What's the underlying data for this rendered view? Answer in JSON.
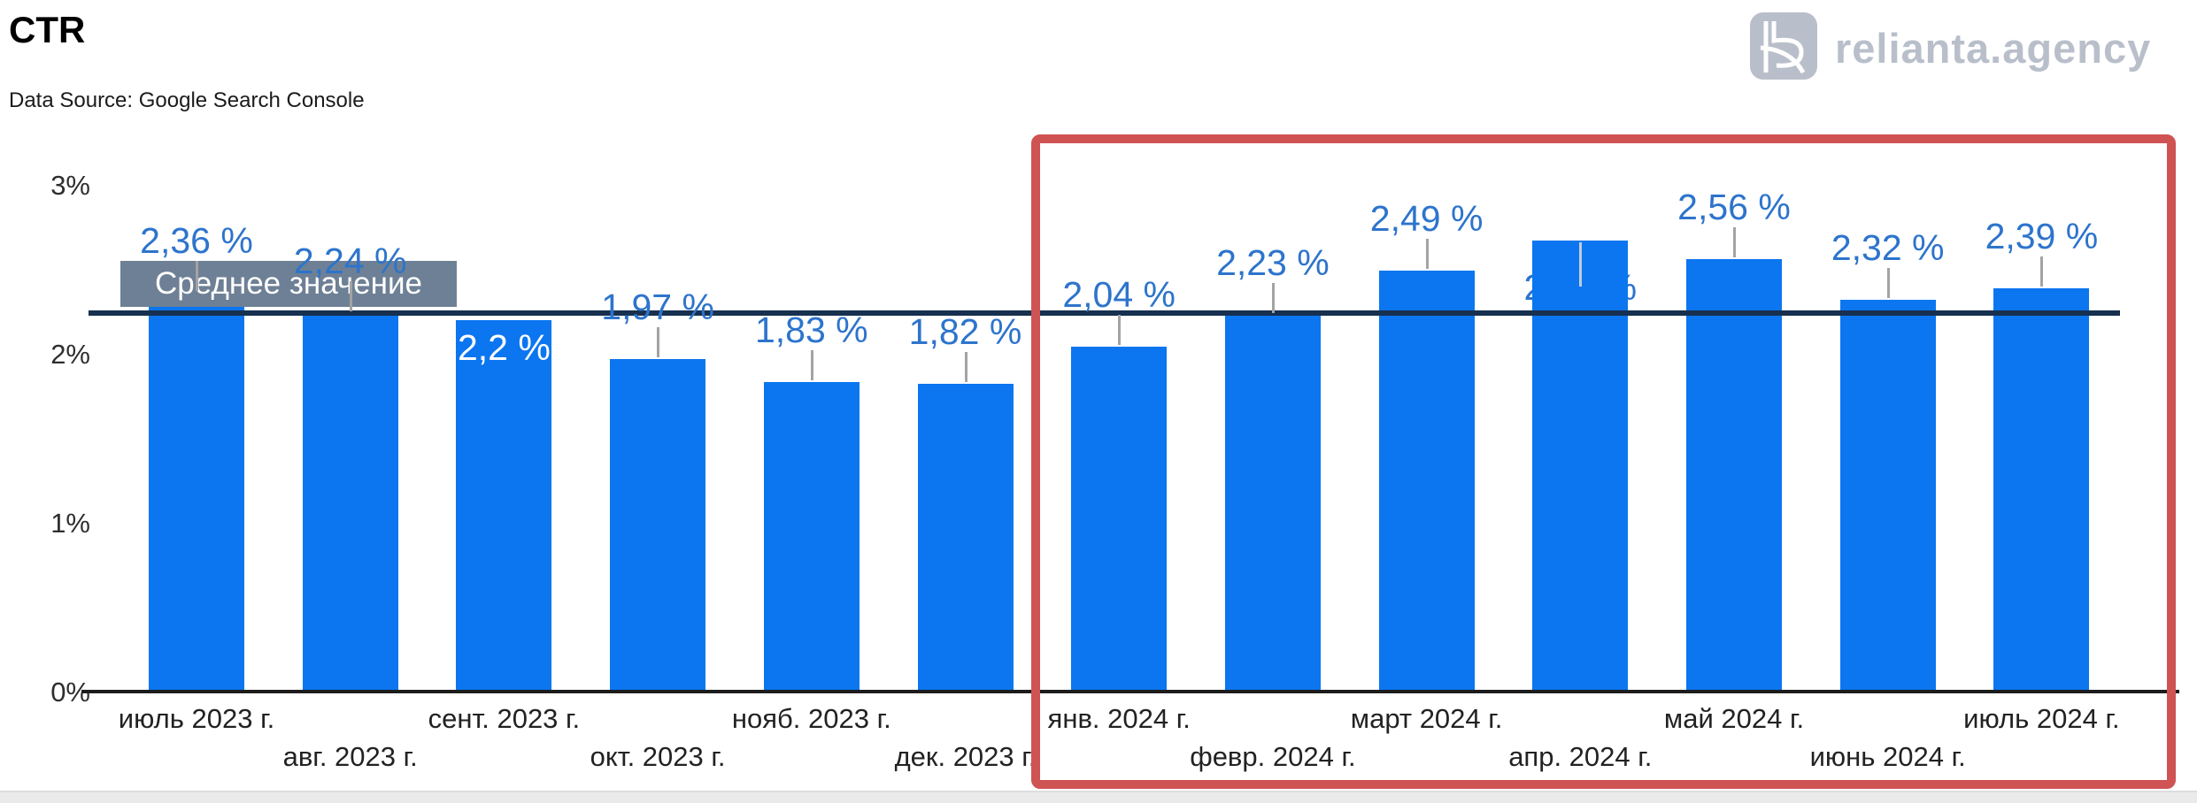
{
  "header": {
    "title": "CTR",
    "data_source": "Data Source: Google Search Console"
  },
  "logo": {
    "text": "relianta.agency",
    "icon": "relianta-r-icon",
    "color": "#b9bfca"
  },
  "chart_data": {
    "type": "bar",
    "title": "CTR",
    "xlabel": "",
    "ylabel": "",
    "ylim": [
      0,
      3
    ],
    "y_ticks": [
      "0%",
      "1%",
      "2%",
      "3%"
    ],
    "grid": false,
    "legend_position": "none",
    "categories": [
      "июль 2023 г.",
      "авг. 2023 г.",
      "сент. 2023 г.",
      "окт. 2023 г.",
      "нояб. 2023 г.",
      "дек. 2023 г.",
      "янв. 2024 г.",
      "февр. 2024 г.",
      "март 2024 г.",
      "апр. 2024 г.",
      "май 2024 г.",
      "июнь 2024 г.",
      "июль 2024 г."
    ],
    "values": [
      2.36,
      2.24,
      2.2,
      1.97,
      1.83,
      1.82,
      2.04,
      2.23,
      2.49,
      2.67,
      2.56,
      2.32,
      2.39
    ],
    "data_labels": [
      "2,36 %",
      "2,24 %",
      "2,2 %",
      "1,97 %",
      "1,83 %",
      "1,82 %",
      "2,04 %",
      "2,23 %",
      "2,49 %",
      "2,67 %",
      "2,56 %",
      "2,32 %",
      "2,39 %"
    ],
    "label_positions": [
      "above",
      "above",
      "inside",
      "above",
      "above",
      "above",
      "above",
      "above",
      "above",
      "behind",
      "above",
      "above",
      "above"
    ],
    "average_line": {
      "value": 2.24,
      "label": "Среднее значение"
    },
    "highlight_region": {
      "from_category": "янв. 2024 г.",
      "to_category": "июль 2024 г.",
      "shape": "red-rounded-rectangle"
    },
    "colors": {
      "bar": "#0b76f0",
      "data_label": "#2d74cc",
      "data_label_inside": "#ffffff",
      "average_line": "#17304f",
      "average_label_bg": "#6e8095",
      "average_label_text": "#ffffff",
      "highlight_border": "#cf5353",
      "axis_line": "#1c1c1c"
    }
  }
}
